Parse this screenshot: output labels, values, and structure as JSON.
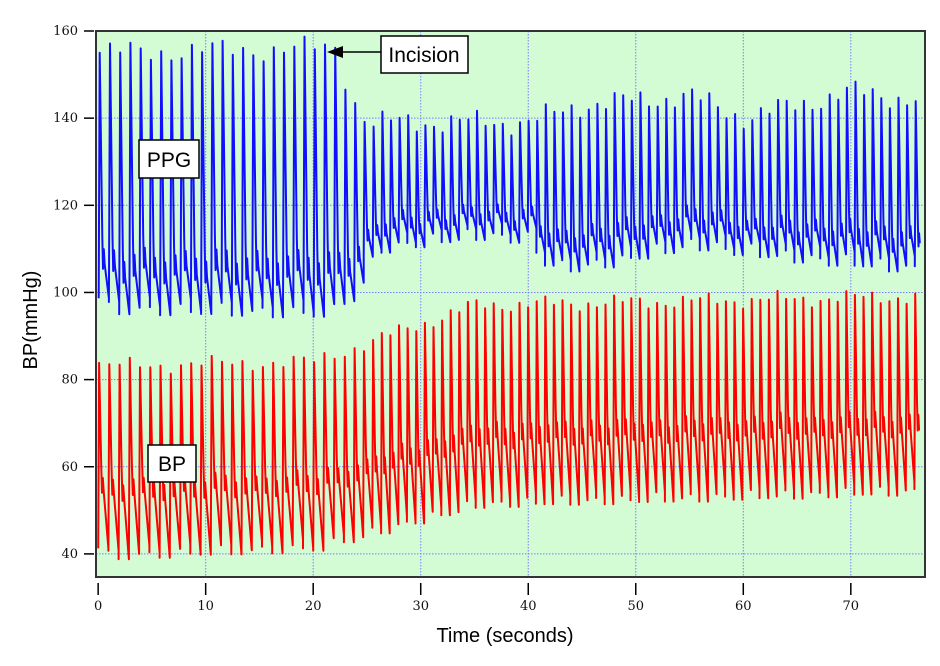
{
  "chart_data": {
    "type": "line",
    "title": "",
    "xlabel": "Time (seconds)",
    "ylabel": "BP(mmHg)",
    "xlim": [
      -0.2,
      76.9
    ],
    "ylim": [
      34.7,
      160
    ],
    "xticks": [
      0,
      10,
      20,
      30,
      40,
      50,
      60,
      70
    ],
    "yticks": [
      40,
      60,
      80,
      100,
      120,
      140,
      160
    ],
    "grid": true,
    "background": "#d4fcd4",
    "grid_color": "#7b7bff",
    "annotations": [
      {
        "text": "Incision",
        "target": [
          21.5,
          156
        ],
        "arrow": true
      },
      {
        "text": "PPG",
        "near_series": "PPG"
      },
      {
        "text": "BP",
        "near_series": "BP"
      }
    ],
    "beat_rate_hz": [
      [
        0,
        1.05
      ],
      [
        22,
        1.05
      ],
      [
        26,
        1.25
      ],
      [
        76.5,
        1.25
      ]
    ],
    "series": [
      {
        "name": "PPG",
        "color": "#1010ff",
        "peak_envelope": [
          [
            0,
            155
          ],
          [
            22,
            156
          ],
          [
            23.5,
            145
          ],
          [
            25,
            139
          ],
          [
            40,
            139
          ],
          [
            45,
            143
          ],
          [
            55,
            145
          ],
          [
            60,
            140
          ],
          [
            70,
            146
          ],
          [
            76.5,
            144
          ]
        ],
        "trough_envelope": [
          [
            0,
            97
          ],
          [
            22,
            96
          ],
          [
            23.5,
            102
          ],
          [
            26,
            111
          ],
          [
            35,
            114
          ],
          [
            40,
            113
          ],
          [
            42,
            106
          ],
          [
            48,
            108
          ],
          [
            55,
            112
          ],
          [
            60,
            110
          ],
          [
            68,
            108
          ],
          [
            76.5,
            106
          ]
        ]
      },
      {
        "name": "BP",
        "color": "#ff0000",
        "peak_envelope": [
          [
            0,
            83
          ],
          [
            20,
            84
          ],
          [
            35,
            97
          ],
          [
            76.5,
            99
          ]
        ],
        "trough_envelope": [
          [
            0,
            40
          ],
          [
            20,
            42
          ],
          [
            35,
            52
          ],
          [
            76.5,
            55
          ]
        ]
      }
    ]
  }
}
